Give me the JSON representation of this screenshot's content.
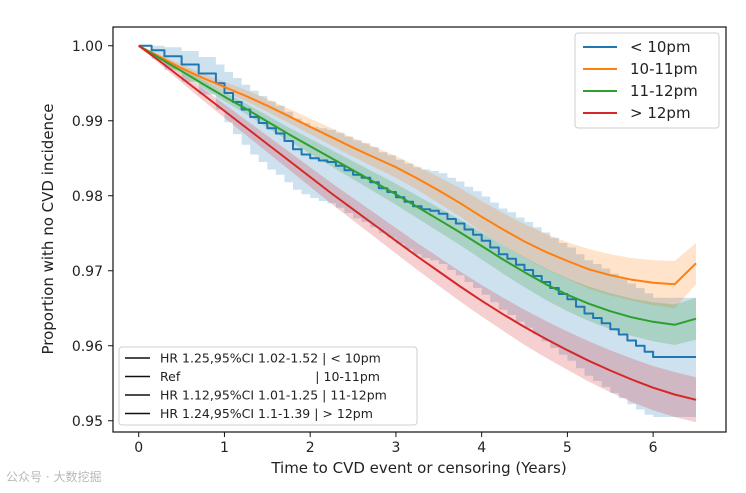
{
  "chart_data": {
    "type": "line",
    "xlabel": "Time to CVD event or censoring (Years)",
    "ylabel": "Proportion with no CVD incidence",
    "xlim": [
      -0.3,
      6.85
    ],
    "ylim": [
      0.9485,
      1.0025
    ],
    "x_ticks": [
      "0",
      "1",
      "2",
      "3",
      "4",
      "5",
      "6"
    ],
    "y_ticks": [
      "1.00",
      "0.99",
      "0.98",
      "0.97",
      "0.96",
      "0.95"
    ],
    "legend_position": "top-right",
    "series": [
      {
        "name": "< 10pm",
        "color": "#1f77b4",
        "step": true,
        "x": [
          0,
          0.15,
          0.3,
          0.5,
          0.7,
          0.9,
          1.0,
          1.1,
          1.2,
          1.3,
          1.4,
          1.5,
          1.6,
          1.7,
          1.8,
          1.9,
          2.0,
          2.1,
          2.2,
          2.3,
          2.4,
          2.5,
          2.6,
          2.7,
          2.8,
          2.9,
          3.0,
          3.1,
          3.2,
          3.3,
          3.4,
          3.5,
          3.6,
          3.7,
          3.8,
          3.9,
          4.0,
          4.1,
          4.2,
          4.3,
          4.4,
          4.5,
          4.6,
          4.7,
          4.8,
          4.9,
          5.0,
          5.1,
          5.2,
          5.3,
          5.4,
          5.5,
          5.6,
          5.7,
          5.8,
          5.9,
          6.0,
          6.5
        ],
        "y": [
          1.0,
          0.9994,
          0.9986,
          0.9975,
          0.9963,
          0.995,
          0.9937,
          0.9925,
          0.9915,
          0.9905,
          0.9897,
          0.989,
          0.9883,
          0.9873,
          0.9862,
          0.9855,
          0.985,
          0.9847,
          0.9845,
          0.984,
          0.9834,
          0.9828,
          0.9824,
          0.9818,
          0.981,
          0.9805,
          0.9798,
          0.9792,
          0.9786,
          0.9782,
          0.978,
          0.9776,
          0.9769,
          0.9763,
          0.9755,
          0.9748,
          0.974,
          0.9731,
          0.9722,
          0.9716,
          0.9708,
          0.9701,
          0.9693,
          0.9685,
          0.9677,
          0.9669,
          0.9662,
          0.9652,
          0.9643,
          0.9637,
          0.963,
          0.9622,
          0.9615,
          0.9607,
          0.96,
          0.9592,
          0.9585,
          0.9585
        ],
        "ci_lower": [
          1.0,
          0.9982,
          0.9968,
          0.9952,
          0.9935,
          0.9915,
          0.9898,
          0.9882,
          0.9868,
          0.9855,
          0.9845,
          0.9835,
          0.9828,
          0.9818,
          0.9808,
          0.9802,
          0.9797,
          0.9793,
          0.979,
          0.9784,
          0.9777,
          0.977,
          0.9765,
          0.9758,
          0.975,
          0.9744,
          0.9736,
          0.9729,
          0.9722,
          0.9717,
          0.9714,
          0.9709,
          0.9701,
          0.9694,
          0.9685,
          0.9677,
          0.9668,
          0.9658,
          0.9648,
          0.9641,
          0.9632,
          0.9624,
          0.9615,
          0.9606,
          0.9597,
          0.9588,
          0.958,
          0.957,
          0.956,
          0.9553,
          0.9545,
          0.9537,
          0.953,
          0.9522,
          0.9515,
          0.9508,
          0.9505,
          0.9505
        ],
        "ci_upper": [
          1.0,
          1.0,
          0.9998,
          0.9993,
          0.9985,
          0.9975,
          0.9965,
          0.9957,
          0.9948,
          0.994,
          0.9933,
          0.9926,
          0.992,
          0.9912,
          0.9903,
          0.9897,
          0.9892,
          0.989,
          0.9888,
          0.9884,
          0.9879,
          0.9874,
          0.987,
          0.9865,
          0.9858,
          0.9854,
          0.9848,
          0.9843,
          0.9838,
          0.9835,
          0.9833,
          0.983,
          0.9824,
          0.9819,
          0.9812,
          0.9806,
          0.9799,
          0.9791,
          0.9783,
          0.9778,
          0.9771,
          0.9765,
          0.9758,
          0.9751,
          0.9744,
          0.9737,
          0.9731,
          0.9722,
          0.9714,
          0.9709,
          0.9703,
          0.9696,
          0.969,
          0.9683,
          0.9677,
          0.967,
          0.9664,
          0.9664
        ]
      },
      {
        "name": "10-11pm",
        "color": "#ff7f0e",
        "x": [
          0,
          0.25,
          0.5,
          0.75,
          1.0,
          1.25,
          1.5,
          1.75,
          2.0,
          2.25,
          2.5,
          2.75,
          3.0,
          3.25,
          3.5,
          3.75,
          4.0,
          4.25,
          4.5,
          4.75,
          5.0,
          5.25,
          5.5,
          5.75,
          6.0,
          6.25,
          6.5
        ],
        "y": [
          1.0,
          0.9985,
          0.997,
          0.9957,
          0.9945,
          0.9933,
          0.992,
          0.9906,
          0.9892,
          0.9878,
          0.9864,
          0.9851,
          0.9838,
          0.9823,
          0.9807,
          0.979,
          0.9772,
          0.9755,
          0.9739,
          0.9725,
          0.9713,
          0.9702,
          0.9694,
          0.9688,
          0.9684,
          0.9682,
          0.971
        ],
        "ci_lower": [
          1.0,
          0.9982,
          0.9966,
          0.9952,
          0.9939,
          0.9926,
          0.9912,
          0.9897,
          0.9882,
          0.9867,
          0.9852,
          0.9838,
          0.9824,
          0.9808,
          0.979,
          0.9772,
          0.9752,
          0.9734,
          0.9717,
          0.9702,
          0.9689,
          0.9676,
          0.9667,
          0.966,
          0.9654,
          0.965,
          0.9682
        ],
        "ci_upper": [
          1.0,
          0.9988,
          0.9975,
          0.9963,
          0.9952,
          0.9941,
          0.9929,
          0.9916,
          0.9903,
          0.989,
          0.9877,
          0.9865,
          0.9853,
          0.9839,
          0.9825,
          0.981,
          0.9793,
          0.9777,
          0.9762,
          0.9749,
          0.9738,
          0.9729,
          0.9722,
          0.9717,
          0.9714,
          0.9713,
          0.9737
        ]
      },
      {
        "name": "11-12pm",
        "color": "#2ca02c",
        "x": [
          0,
          0.25,
          0.5,
          0.75,
          1.0,
          1.25,
          1.5,
          1.75,
          2.0,
          2.25,
          2.5,
          2.75,
          3.0,
          3.25,
          3.5,
          3.75,
          4.0,
          4.25,
          4.5,
          4.75,
          5.0,
          5.25,
          5.5,
          5.75,
          6.0,
          6.25,
          6.5
        ],
        "y": [
          1.0,
          0.9983,
          0.9966,
          0.9949,
          0.9932,
          0.9916,
          0.9899,
          0.9882,
          0.9866,
          0.985,
          0.9834,
          0.9818,
          0.9802,
          0.9785,
          0.9768,
          0.9751,
          0.9733,
          0.9715,
          0.9698,
          0.9682,
          0.9668,
          0.9656,
          0.9646,
          0.9638,
          0.9632,
          0.9628,
          0.9636
        ],
        "ci_lower": [
          1.0,
          0.998,
          0.9962,
          0.9944,
          0.9926,
          0.9909,
          0.9891,
          0.9873,
          0.9856,
          0.9839,
          0.9822,
          0.9805,
          0.9788,
          0.977,
          0.9752,
          0.9734,
          0.9715,
          0.9696,
          0.9678,
          0.9661,
          0.9646,
          0.9633,
          0.9622,
          0.9613,
          0.9606,
          0.9601,
          0.9608
        ],
        "ci_upper": [
          1.0,
          0.9986,
          0.997,
          0.9954,
          0.9938,
          0.9923,
          0.9907,
          0.9891,
          0.9876,
          0.9861,
          0.9846,
          0.9831,
          0.9816,
          0.98,
          0.9784,
          0.9768,
          0.9751,
          0.9734,
          0.9718,
          0.9703,
          0.969,
          0.9679,
          0.967,
          0.9663,
          0.9658,
          0.9655,
          0.9664
        ]
      },
      {
        "name": "> 12pm",
        "color": "#d62728",
        "x": [
          0,
          0.25,
          0.5,
          0.75,
          1.0,
          1.25,
          1.5,
          1.75,
          2.0,
          2.25,
          2.5,
          2.75,
          3.0,
          3.25,
          3.5,
          3.75,
          4.0,
          4.25,
          4.5,
          4.75,
          5.0,
          5.25,
          5.5,
          5.75,
          6.0,
          6.25,
          6.5
        ],
        "y": [
          1.0,
          0.9979,
          0.9957,
          0.9935,
          0.9913,
          0.9891,
          0.9869,
          0.9847,
          0.9825,
          0.9803,
          0.9782,
          0.9761,
          0.974,
          0.9719,
          0.9699,
          0.9679,
          0.966,
          0.9642,
          0.9625,
          0.9609,
          0.9594,
          0.958,
          0.9567,
          0.9555,
          0.9544,
          0.9535,
          0.9528
        ],
        "ci_lower": [
          1.0,
          0.9975,
          0.9951,
          0.9927,
          0.9904,
          0.9881,
          0.9858,
          0.9835,
          0.9812,
          0.9789,
          0.9767,
          0.9745,
          0.9723,
          0.9701,
          0.968,
          0.9659,
          0.9639,
          0.962,
          0.9601,
          0.9584,
          0.9568,
          0.9552,
          0.9538,
          0.9525,
          0.9514,
          0.9505,
          0.9498
        ],
        "ci_upper": [
          1.0,
          0.9983,
          0.9963,
          0.9943,
          0.9922,
          0.9901,
          0.988,
          0.9859,
          0.9838,
          0.9817,
          0.9797,
          0.9777,
          0.9757,
          0.9737,
          0.9718,
          0.9699,
          0.9681,
          0.9664,
          0.9648,
          0.9633,
          0.9619,
          0.9606,
          0.9594,
          0.9583,
          0.9573,
          0.9565,
          0.9558
        ]
      }
    ],
    "hr_annotations": [
      "HR 1.25,95%CI 1.02-1.52 | < 10pm",
      "Ref                                  | 10-11pm",
      "HR 1.12,95%CI 1.01-1.25 | 11-12pm",
      "HR 1.24,95%CI 1.1-1.39 | > 12pm"
    ]
  },
  "watermark": "公众号 · 大数挖掘"
}
